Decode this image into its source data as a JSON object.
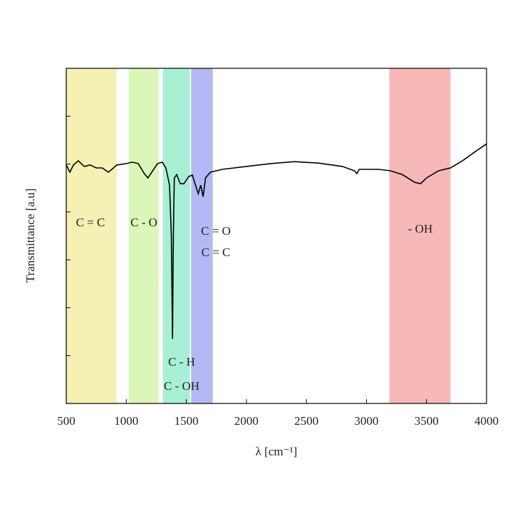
{
  "chart_data": {
    "type": "line",
    "xlabel": "λ [cm⁻¹]",
    "ylabel": "Transmittance  [a.u]",
    "xlim": [
      500,
      4000
    ],
    "xticks": [
      500,
      1000,
      1500,
      2000,
      2500,
      3000,
      3500,
      4000
    ],
    "ylim": [
      0,
      7
    ],
    "yticks": [
      1,
      2,
      3,
      4,
      5,
      6
    ],
    "bands": [
      {
        "x0": 500,
        "x1": 920,
        "color": "#f5f0b4",
        "label": [
          "C = C"
        ]
      },
      {
        "x0": 1020,
        "x1": 1270,
        "color": "#dcf5b8",
        "label": [
          "C - O"
        ]
      },
      {
        "x0": 1305,
        "x1": 1530,
        "color": "#a8f0d4",
        "label": [
          "C - H",
          "C - OH"
        ]
      },
      {
        "x0": 1540,
        "x1": 1720,
        "color": "#b4b8f4",
        "label": [
          "C = O",
          "C = C"
        ]
      },
      {
        "x0": 3190,
        "x1": 3700,
        "color": "#f7b8b8",
        "label": [
          "- OH"
        ]
      }
    ],
    "series": [
      {
        "color": "#000000",
        "x": [
          500,
          530,
          560,
          600,
          650,
          700,
          750,
          800,
          850,
          880,
          920,
          1000,
          1050,
          1100,
          1150,
          1180,
          1220,
          1260,
          1300,
          1330,
          1360,
          1375,
          1385,
          1392,
          1400,
          1420,
          1450,
          1480,
          1520,
          1550,
          1580,
          1600,
          1620,
          1640,
          1660,
          1700,
          1750,
          1800,
          2000,
          2200,
          2400,
          2600,
          2800,
          2900,
          2920,
          2940,
          3000,
          3100,
          3200,
          3300,
          3400,
          3450,
          3500,
          3600,
          3700,
          3800,
          3900,
          4000
        ],
        "values": [
          4.98,
          4.83,
          4.98,
          5.07,
          4.95,
          4.98,
          4.92,
          4.92,
          4.83,
          4.89,
          4.98,
          5.01,
          5.04,
          5.01,
          4.8,
          4.71,
          4.86,
          5.01,
          5.04,
          4.92,
          4.56,
          3.52,
          1.35,
          3.52,
          4.71,
          4.78,
          4.59,
          4.59,
          4.74,
          4.77,
          4.53,
          4.38,
          4.56,
          4.32,
          4.71,
          4.83,
          4.86,
          4.89,
          4.95,
          5.01,
          5.05,
          5.02,
          4.95,
          4.86,
          4.8,
          4.89,
          4.89,
          4.89,
          4.86,
          4.78,
          4.62,
          4.59,
          4.71,
          4.86,
          4.92,
          5.07,
          5.25,
          5.42
        ]
      }
    ]
  }
}
